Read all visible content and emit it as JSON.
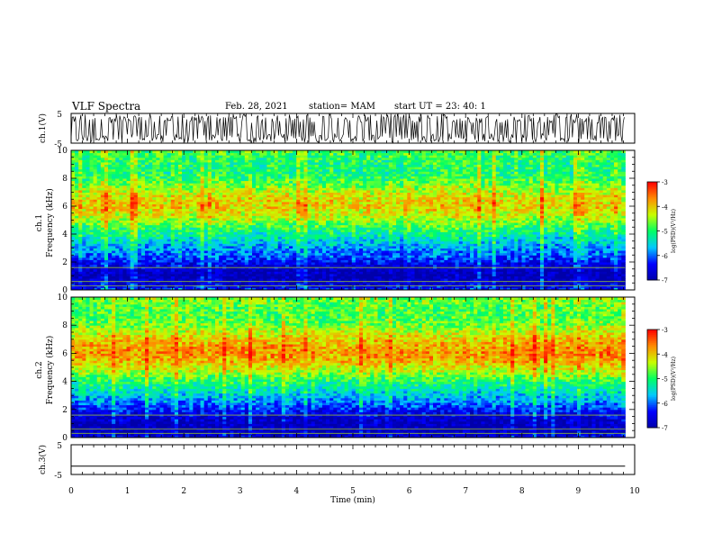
{
  "header": {
    "title": "VLF Spectra",
    "date": "Feb. 28, 2021",
    "station": "station= MAM",
    "start": "start  UT =   23: 40: 1"
  },
  "chart_data": [
    {
      "type": "line",
      "panel": "ch1-waveform",
      "ylabel": "ch.1(V)",
      "ylim": [
        -5,
        5
      ],
      "yticks": [
        "5",
        "-5"
      ],
      "xlim": [
        0,
        10
      ],
      "description_series": [
        {
          "values_range": [
            -5,
            5
          ]
        }
      ]
    },
    {
      "type": "heatmap",
      "panel": "ch1-spectrogram",
      "ylabel": "ch.1\nFrequency (kHz)",
      "ylabel_top": "ch.1",
      "ylabel_bottom": "Frequency (kHz)",
      "ylim": [
        0,
        10
      ],
      "yticks": [
        "0",
        "2",
        "4",
        "6",
        "8",
        "10"
      ],
      "xlim": [
        0,
        9.83
      ],
      "colorbar": {
        "label": "log(PSD)(V²/Hz)",
        "min": -7,
        "max": -3,
        "ticks": [
          "-3",
          "-4",
          "-5",
          "-6",
          "-7"
        ]
      },
      "profile_khz": [
        0,
        0.5,
        1,
        1.5,
        2,
        2.5,
        3,
        3.5,
        4,
        4.5,
        5,
        5.5,
        6,
        6.5,
        7,
        7.5,
        8,
        8.5,
        9,
        9.5,
        10
      ],
      "profile_logpsd": [
        -6.2,
        -6.7,
        -6.9,
        -6.8,
        -6.4,
        -6.0,
        -5.8,
        -5.5,
        -5.2,
        -4.9,
        -4.5,
        -4.2,
        -4.0,
        -4.1,
        -4.3,
        -4.6,
        -4.9,
        -5.0,
        -5.0,
        -4.9,
        -4.8
      ]
    },
    {
      "type": "heatmap",
      "panel": "ch2-spectrogram",
      "ylabel_top": "ch.2",
      "ylabel_bottom": "Frequency (kHz)",
      "ylim": [
        0,
        10
      ],
      "yticks": [
        "0",
        "2",
        "4",
        "6",
        "8",
        "10"
      ],
      "xlim": [
        0,
        9.83
      ],
      "colorbar": {
        "label": "log(PSD)(V²/Hz)",
        "min": -7,
        "max": -3,
        "ticks": [
          "-3",
          "-4",
          "-5",
          "-6",
          "-7"
        ]
      },
      "profile_khz": [
        0,
        0.5,
        1,
        1.5,
        2,
        2.5,
        3,
        3.5,
        4,
        4.5,
        5,
        5.5,
        6,
        6.5,
        7,
        7.5,
        8,
        8.5,
        9,
        9.5,
        10
      ],
      "profile_logpsd": [
        -6.6,
        -6.9,
        -6.9,
        -6.7,
        -6.3,
        -5.9,
        -5.6,
        -5.3,
        -5.0,
        -4.6,
        -4.2,
        -3.9,
        -3.7,
        -3.8,
        -4.0,
        -4.3,
        -4.6,
        -4.8,
        -4.8,
        -4.7,
        -4.6
      ]
    },
    {
      "type": "line",
      "panel": "ch3-waveform",
      "ylabel": "ch.3(V)",
      "ylim": [
        -5,
        5
      ],
      "yticks": [
        "5",
        "-5"
      ],
      "xlim": [
        0,
        10
      ],
      "xlabel": "Time  (min)",
      "xticks": [
        "0",
        "1",
        "2",
        "3",
        "4",
        "5",
        "6",
        "7",
        "8",
        "9",
        "10"
      ],
      "series": [
        {
          "x": [
            0,
            9.83
          ],
          "values": [
            -2.2,
            -2.2
          ]
        }
      ]
    }
  ],
  "colors": {
    "ink": "#000000",
    "colormap": [
      "#000000",
      "#0000ff",
      "#00c8ff",
      "#00ff64",
      "#c8ff00",
      "#ff8c00",
      "#ff0000",
      "#ffffff"
    ]
  }
}
